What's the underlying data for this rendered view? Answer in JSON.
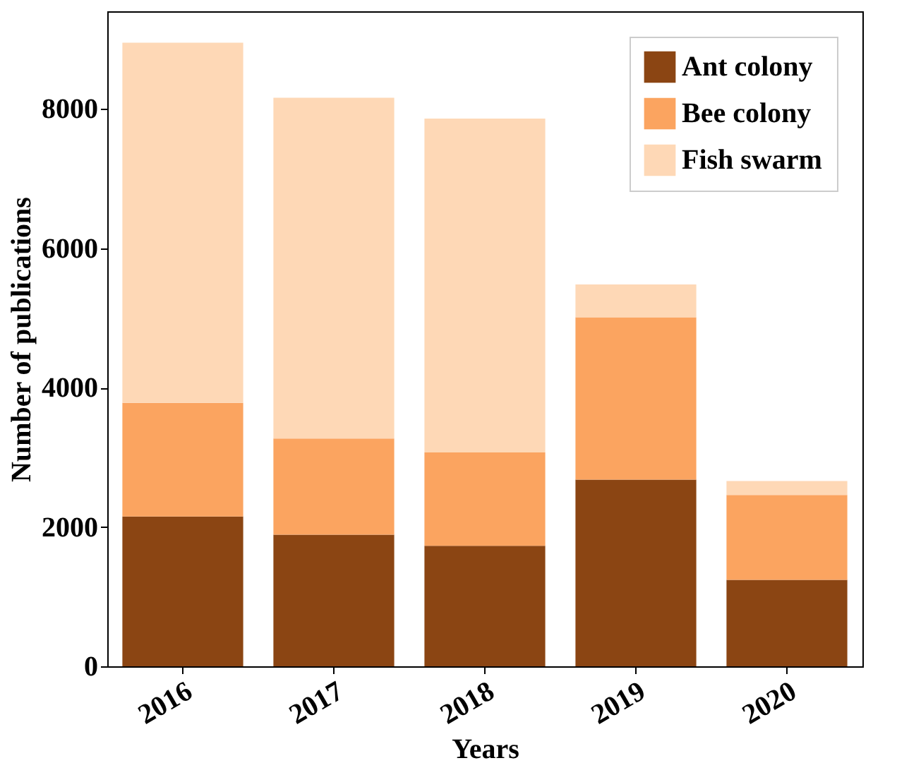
{
  "chart_data": {
    "type": "bar",
    "stacked": true,
    "xlabel": "Years",
    "ylabel": "Number of publications",
    "categories": [
      "2016",
      "2017",
      "2018",
      "2019",
      "2020"
    ],
    "series": [
      {
        "name": "Ant colony",
        "color": "#8b4513",
        "values": [
          2150,
          1890,
          1730,
          2680,
          1240
        ]
      },
      {
        "name": "Bee colony",
        "color": "#fba460",
        "values": [
          1630,
          1380,
          1340,
          2330,
          1220
        ]
      },
      {
        "name": "Fish swarm",
        "color": "#fed8b6",
        "values": [
          5170,
          4890,
          4790,
          470,
          200
        ]
      }
    ],
    "ylim": [
      0,
      9400
    ],
    "yticks": [
      0,
      2000,
      4000,
      6000,
      8000
    ],
    "grid": false,
    "legend": "top right"
  }
}
